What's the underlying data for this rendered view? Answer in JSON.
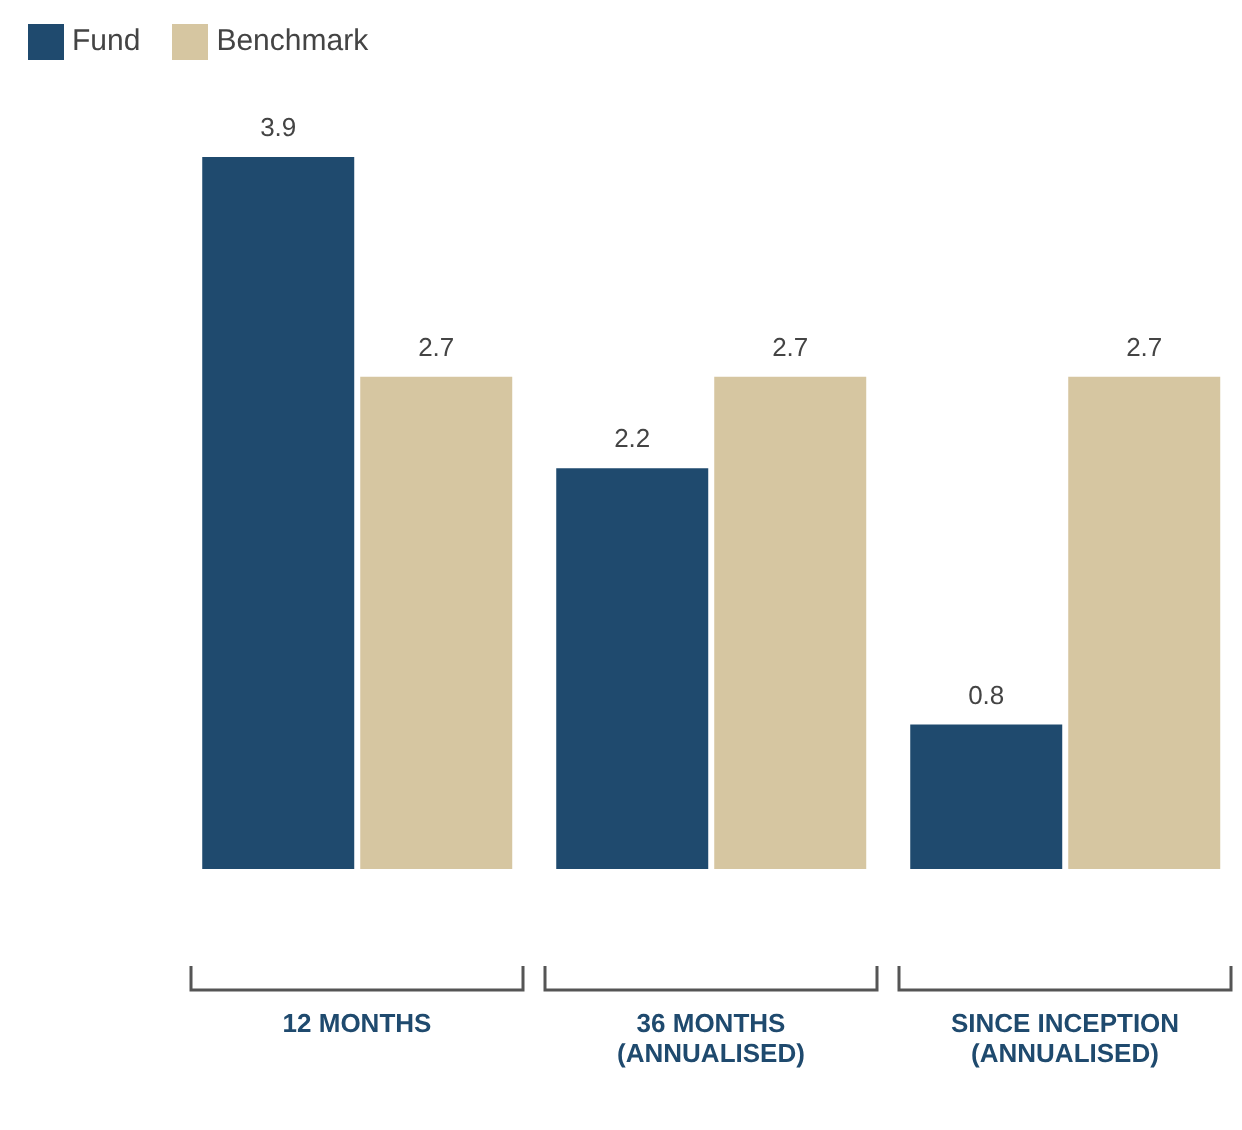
{
  "chart_data": {
    "type": "bar",
    "categories": [
      "12 MONTHS",
      "36 MONTHS (ANNUALISED)",
      "SINCE INCEPTION (ANNUALISED)"
    ],
    "series": [
      {
        "name": "Fund",
        "color": "#1f4a6e",
        "values": [
          3.9,
          2.2,
          0.8
        ]
      },
      {
        "name": "Benchmark",
        "color": "#d6c6a1",
        "values": [
          2.7,
          2.7,
          2.7
        ]
      }
    ],
    "data_labels": true,
    "legend": "top left",
    "grid": false
  }
}
